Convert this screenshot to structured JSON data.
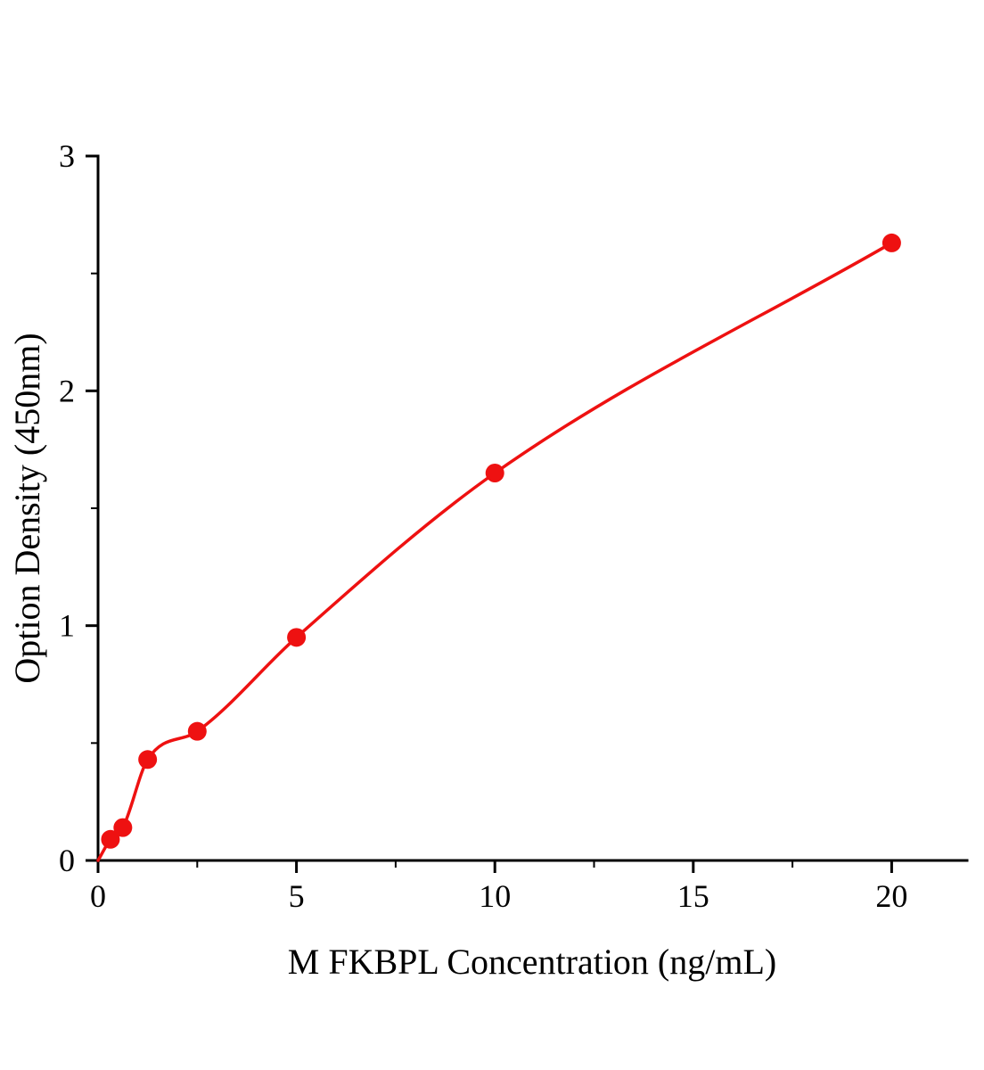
{
  "figure": {
    "background_color": "#ffffff",
    "description": "ELISA standard curve: scatter points with smooth fitted curve"
  },
  "chart_data": {
    "type": "scatter",
    "title": "",
    "xlabel": "M FKBPL Concentration（ng/mL）",
    "ylabel": "Option Density（450nm）",
    "x": [
      0.313,
      0.625,
      1.25,
      2.5,
      5,
      10,
      20
    ],
    "y": [
      0.09,
      0.14,
      0.43,
      0.55,
      0.95,
      1.65,
      2.63
    ],
    "fit_curve": {
      "type": "smooth-monotone-through-points",
      "start": [
        0,
        0
      ]
    },
    "xlim": [
      0,
      21.9
    ],
    "ylim": [
      0,
      3
    ],
    "x_major_ticks": [
      0,
      5,
      10,
      15,
      20
    ],
    "x_tick_labels": [
      "0",
      "5",
      "10",
      "15",
      "20"
    ],
    "x_minor_ticks": [
      2.5,
      7.5,
      12.5,
      17.5
    ],
    "y_major_ticks": [
      0,
      1,
      2,
      3
    ],
    "y_tick_labels": [
      "0",
      "1",
      "2",
      "3"
    ],
    "y_minor_ticks": [
      0.5,
      1.5,
      2.5
    ],
    "grid": false,
    "legend": "none",
    "marker": "circle",
    "marker_size_px": 10.5,
    "point_color": "#ee1111",
    "curve_color": "#ee1111",
    "axis_color": "#000000",
    "text_color": "#000000"
  }
}
